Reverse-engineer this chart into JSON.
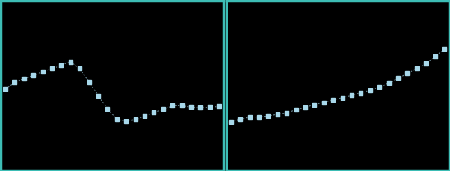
{
  "left_y": [
    5.2,
    5.3,
    5.35,
    5.4,
    5.45,
    5.5,
    5.55,
    5.6,
    5.5,
    5.3,
    5.1,
    4.9,
    4.75,
    4.72,
    4.75,
    4.8,
    4.85,
    4.9,
    4.95,
    4.95,
    4.93,
    4.92,
    4.93,
    4.94
  ],
  "right_y": [
    70,
    70.5,
    71,
    71,
    71.2,
    71.5,
    71.8,
    72.5,
    73,
    73.5,
    74,
    74.5,
    75,
    75.5,
    76,
    76.5,
    77.2,
    78,
    79,
    80,
    81,
    82,
    83.5,
    85
  ],
  "n_points": 24,
  "bg_color": "#000000",
  "border_color": "#3dbdb5",
  "dot_color": "#a8d8ea",
  "left_ylim": [
    4.0,
    6.5
  ],
  "right_ylim": [
    60,
    95
  ],
  "border_width": 2.5
}
